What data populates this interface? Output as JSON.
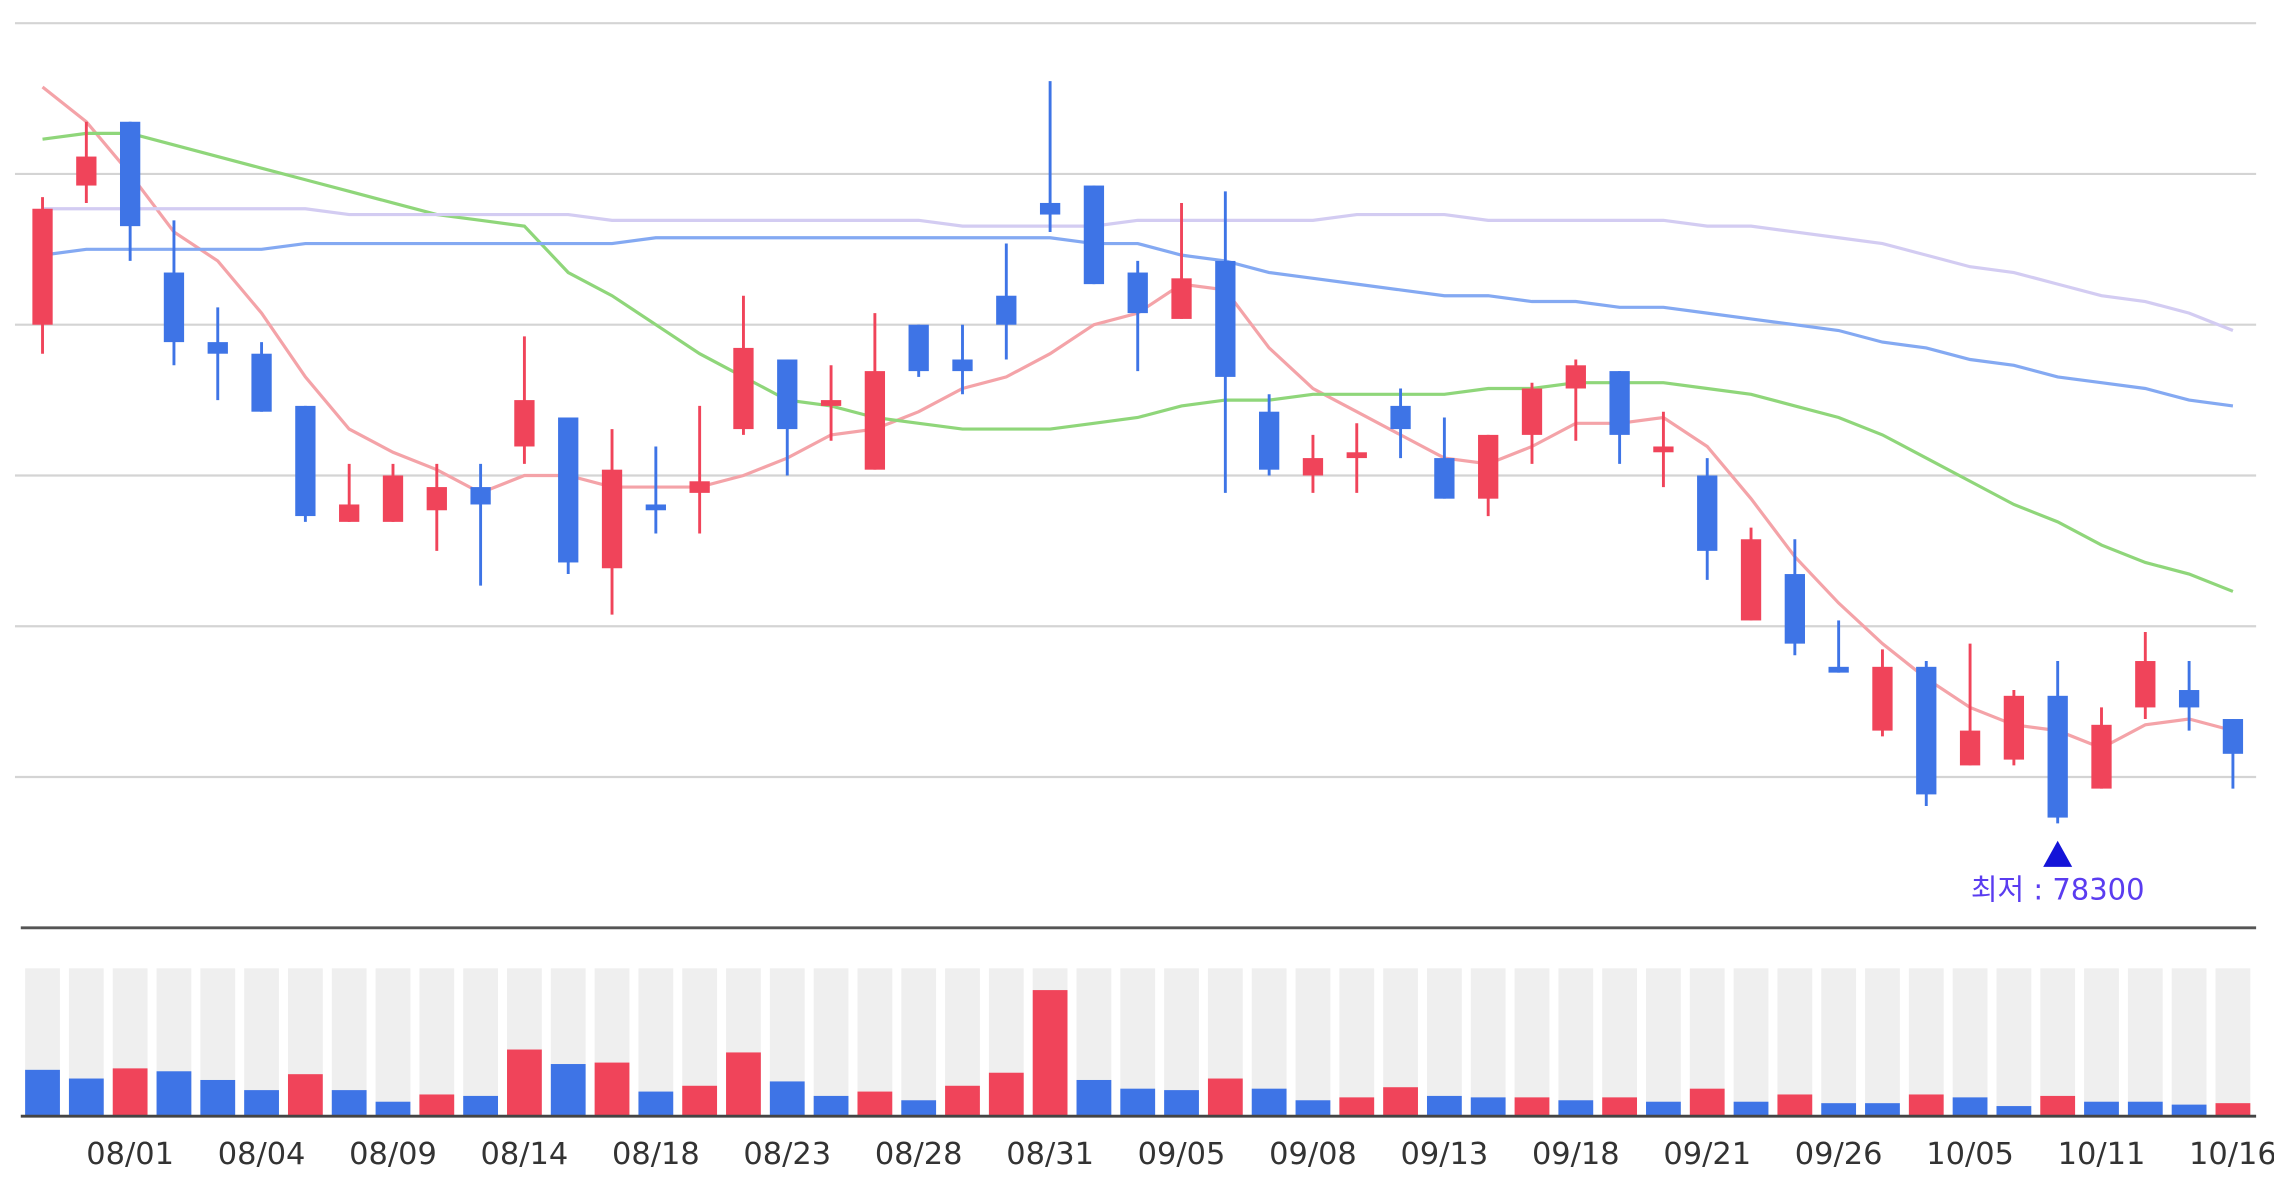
{
  "chart_data": {
    "type": "candlestick",
    "categories": [
      null,
      null,
      "08/01",
      null,
      null,
      "08/04",
      null,
      null,
      "08/09",
      null,
      null,
      "08/14",
      null,
      null,
      "08/18",
      null,
      null,
      "08/23",
      null,
      null,
      "08/28",
      null,
      null,
      "08/31",
      null,
      null,
      "09/05",
      null,
      null,
      "09/08",
      null,
      null,
      "09/13",
      null,
      null,
      "09/18",
      null,
      null,
      "09/21",
      null,
      null,
      "09/26",
      null,
      null,
      "10/05",
      null,
      null,
      "10/11",
      null,
      null,
      "10/16"
    ],
    "open": [
      86900,
      89300,
      90400,
      87800,
      86600,
      86400,
      85500,
      83500,
      83500,
      83700,
      84100,
      84800,
      85300,
      82700,
      83800,
      84000,
      85100,
      86300,
      85500,
      84400,
      86900,
      86300,
      87400,
      89000,
      89300,
      87800,
      87000,
      88000,
      85400,
      84300,
      84600,
      85500,
      84600,
      83900,
      85000,
      85800,
      86100,
      84700,
      84300,
      81800,
      82600,
      81000,
      79900,
      81000,
      79300,
      79400,
      80500,
      78900,
      80300,
      80600,
      80100
    ],
    "high": [
      89100,
      90400,
      90400,
      88700,
      87200,
      86600,
      85500,
      84500,
      84500,
      84500,
      84500,
      86700,
      85300,
      85100,
      84800,
      85500,
      87400,
      86300,
      86200,
      87100,
      86900,
      86900,
      88300,
      91100,
      89300,
      88000,
      89000,
      89200,
      85700,
      85000,
      85200,
      85800,
      85300,
      85000,
      85900,
      86300,
      86100,
      85400,
      84600,
      83400,
      83200,
      81800,
      81300,
      81100,
      81400,
      80600,
      81100,
      80300,
      81600,
      81100,
      80100
    ],
    "low": [
      86400,
      89000,
      88000,
      86200,
      85600,
      85400,
      83500,
      83500,
      83500,
      83000,
      82400,
      84500,
      82600,
      81900,
      83300,
      83300,
      85000,
      84300,
      84900,
      84400,
      86000,
      85700,
      86300,
      88500,
      87600,
      86100,
      87000,
      84000,
      84300,
      84000,
      84000,
      84600,
      83900,
      83600,
      84500,
      84900,
      84500,
      84100,
      82500,
      81800,
      81200,
      80900,
      79800,
      78600,
      79300,
      79300,
      78300,
      78900,
      80100,
      79900,
      78900
    ],
    "close": [
      88900,
      89800,
      88600,
      86600,
      86400,
      85400,
      83600,
      83800,
      84300,
      84100,
      83800,
      85600,
      82800,
      84400,
      83700,
      84200,
      86500,
      85100,
      85600,
      86100,
      86100,
      86100,
      86900,
      88800,
      87600,
      87100,
      87700,
      86000,
      84400,
      84600,
      84700,
      85100,
      83900,
      85000,
      85800,
      86200,
      85000,
      84800,
      83000,
      83200,
      81400,
      80900,
      81000,
      78800,
      79900,
      80500,
      78400,
      80000,
      81100,
      80300,
      79500
    ],
    "up_color": "#f0445a",
    "down_color": "#3e74e6",
    "ma_lines": [
      {
        "color": "#f4a3a8",
        "values": [
          91000,
          90400,
          89500,
          88500,
          88000,
          87100,
          86000,
          85100,
          84700,
          84400,
          84000,
          84300,
          84300,
          84100,
          84100,
          84100,
          84300,
          84600,
          85000,
          85100,
          85400,
          85800,
          86000,
          86400,
          86900,
          87100,
          87600,
          87500,
          86500,
          85800,
          85400,
          85000,
          84600,
          84500,
          84800,
          85200,
          85200,
          85300,
          84800,
          83900,
          82900,
          82100,
          81400,
          80800,
          80300,
          80000,
          79900,
          79600,
          80000,
          80100,
          79900
        ]
      },
      {
        "color": "#8fd67a",
        "values": [
          90100,
          90200,
          90200,
          90000,
          89800,
          89600,
          89400,
          89200,
          89000,
          88800,
          88700,
          88600,
          87800,
          87400,
          86900,
          86400,
          86000,
          85600,
          85500,
          85300,
          85200,
          85100,
          85100,
          85100,
          85200,
          85300,
          85500,
          85600,
          85600,
          85700,
          85700,
          85700,
          85700,
          85800,
          85800,
          85900,
          85900,
          85900,
          85800,
          85700,
          85500,
          85300,
          85000,
          84600,
          84200,
          83800,
          83500,
          83100,
          82800,
          82600,
          82300
        ]
      },
      {
        "color": "#84a9f2",
        "values": [
          88100,
          88200,
          88200,
          88200,
          88200,
          88200,
          88300,
          88300,
          88300,
          88300,
          88300,
          88300,
          88300,
          88300,
          88400,
          88400,
          88400,
          88400,
          88400,
          88400,
          88400,
          88400,
          88400,
          88400,
          88300,
          88300,
          88100,
          88000,
          87800,
          87700,
          87600,
          87500,
          87400,
          87400,
          87300,
          87300,
          87200,
          87200,
          87100,
          87000,
          86900,
          86800,
          86600,
          86500,
          86300,
          86200,
          86000,
          85900,
          85800,
          85600,
          85500
        ]
      },
      {
        "color": "#d3ccf2",
        "values": [
          88900,
          88900,
          88900,
          88900,
          88900,
          88900,
          88900,
          88800,
          88800,
          88800,
          88800,
          88800,
          88800,
          88700,
          88700,
          88700,
          88700,
          88700,
          88700,
          88700,
          88700,
          88600,
          88600,
          88600,
          88600,
          88700,
          88700,
          88700,
          88700,
          88700,
          88800,
          88800,
          88800,
          88700,
          88700,
          88700,
          88700,
          88700,
          88600,
          88600,
          88500,
          88400,
          88300,
          88100,
          87900,
          87800,
          87600,
          87400,
          87300,
          87100,
          86800
        ]
      }
    ],
    "ylim": [
      76500,
      92500
    ],
    "yticks": [
      79100,
      81700,
      84300,
      86900,
      89500,
      92100
    ],
    "grid": true,
    "volume": {
      "values": [
        32,
        26,
        33,
        31,
        25,
        18,
        29,
        18,
        10,
        15,
        14,
        46,
        36,
        37,
        17,
        21,
        44,
        24,
        14,
        17,
        11,
        21,
        30,
        87,
        25,
        19,
        18,
        26,
        19,
        11,
        13,
        20,
        14,
        13,
        13,
        11,
        13,
        10,
        19,
        10,
        15,
        9,
        9,
        15,
        13,
        7,
        14,
        10,
        10,
        8,
        9
      ],
      "colors": [
        "#3e74e6",
        "#3e74e6",
        "#f0445a",
        "#3e74e6",
        "#3e74e6",
        "#3e74e6",
        "#f0445a",
        "#3e74e6",
        "#3e74e6",
        "#f0445a",
        "#3e74e6",
        "#f0445a",
        "#3e74e6",
        "#f0445a",
        "#3e74e6",
        "#f0445a",
        "#f0445a",
        "#3e74e6",
        "#3e74e6",
        "#f0445a",
        "#3e74e6",
        "#f0445a",
        "#f0445a",
        "#f0445a",
        "#3e74e6",
        "#3e74e6",
        "#3e74e6",
        "#f0445a",
        "#3e74e6",
        "#3e74e6",
        "#f0445a",
        "#f0445a",
        "#3e74e6",
        "#3e74e6",
        "#f0445a",
        "#3e74e6",
        "#f0445a",
        "#3e74e6",
        "#f0445a",
        "#3e74e6",
        "#f0445a",
        "#3e74e6",
        "#3e74e6",
        "#f0445a",
        "#3e74e6",
        "#3e74e6",
        "#f0445a",
        "#3e74e6",
        "#3e74e6",
        "#3e74e6",
        "#f0445a"
      ],
      "lim": [
        0,
        102
      ]
    },
    "annotation": {
      "label": "최저 : 78300",
      "value": 78300
    }
  }
}
